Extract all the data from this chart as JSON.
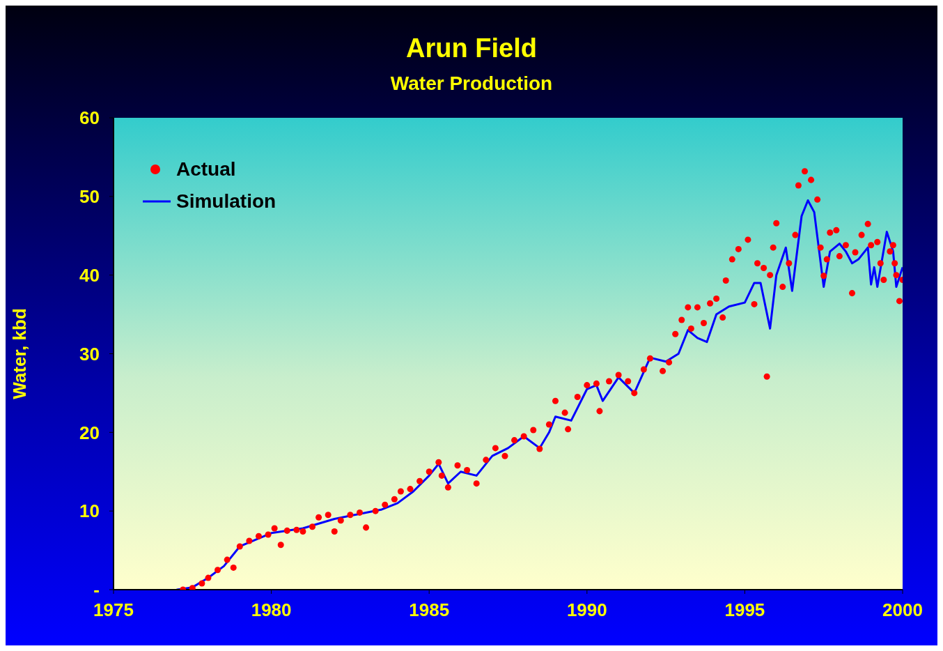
{
  "chart_data": {
    "type": "scatter",
    "title": "Arun Field",
    "subtitle": "Water Production",
    "ylabel": "Water, kbd",
    "xlim": [
      1975,
      2000
    ],
    "xticks": [
      1975,
      1980,
      1985,
      1990,
      1995,
      2000
    ],
    "ylim": [
      0,
      60
    ],
    "yticks": [
      {
        "value": 0,
        "label": "-"
      },
      10,
      20,
      30,
      40,
      50,
      60
    ],
    "legend": "top left",
    "grid": false,
    "series": [
      {
        "name": "Actual",
        "marker": "circle",
        "color": "#ff0000",
        "x": [
          1977.2,
          1977.5,
          1977.8,
          1978.0,
          1978.3,
          1978.6,
          1978.8,
          1979.0,
          1979.3,
          1979.6,
          1979.9,
          1980.1,
          1980.3,
          1980.5,
          1980.8,
          1981.0,
          1981.3,
          1981.5,
          1981.8,
          1982.0,
          1982.2,
          1982.5,
          1982.8,
          1983.0,
          1983.3,
          1983.6,
          1983.9,
          1984.1,
          1984.4,
          1984.7,
          1985.0,
          1985.3,
          1985.4,
          1985.6,
          1985.9,
          1986.2,
          1986.5,
          1986.8,
          1987.1,
          1987.4,
          1987.7,
          1988.0,
          1988.3,
          1988.5,
          1988.8,
          1989.0,
          1989.3,
          1989.4,
          1989.7,
          1990.0,
          1990.3,
          1990.4,
          1990.7,
          1991.0,
          1991.3,
          1991.5,
          1991.8,
          1992.0,
          1992.4,
          1992.6,
          1992.8,
          1993.0,
          1993.2,
          1993.3,
          1993.5,
          1993.7,
          1993.9,
          1994.1,
          1994.3,
          1994.4,
          1994.6,
          1994.8,
          1995.1,
          1995.3,
          1995.4,
          1995.6,
          1995.7,
          1995.8,
          1995.9,
          1996.0,
          1996.2,
          1996.4,
          1996.6,
          1996.7,
          1996.9,
          1997.1,
          1997.3,
          1997.4,
          1997.5,
          1997.6,
          1997.7,
          1997.9,
          1998.0,
          1998.2,
          1998.4,
          1998.5,
          1998.7,
          1998.9,
          1999.0,
          1999.2,
          1999.3,
          1999.4,
          1999.6,
          1999.7,
          1999.75,
          1999.8,
          1999.9,
          2000.0
        ],
        "values": [
          0,
          0.2,
          0.8,
          1.5,
          2.5,
          3.8,
          2.8,
          5.5,
          6.2,
          6.8,
          7.0,
          7.8,
          5.7,
          7.5,
          7.6,
          7.4,
          8.0,
          9.2,
          9.5,
          7.4,
          8.8,
          9.5,
          9.8,
          7.9,
          10.0,
          10.8,
          11.5,
          12.5,
          12.8,
          13.8,
          15.0,
          16.2,
          14.5,
          13.0,
          15.8,
          15.2,
          13.5,
          16.5,
          18.0,
          17.0,
          19.0,
          19.5,
          20.3,
          17.9,
          21.0,
          24.0,
          22.5,
          20.4,
          24.5,
          26.0,
          26.2,
          22.7,
          26.5,
          27.3,
          26.5,
          25.0,
          28.0,
          29.4,
          27.8,
          28.9,
          32.5,
          34.3,
          35.9,
          33.2,
          35.9,
          33.9,
          36.4,
          37.0,
          34.6,
          39.3,
          42.0,
          43.3,
          44.5,
          36.3,
          41.5,
          40.9,
          27.1,
          40.0,
          43.5,
          46.6,
          38.5,
          41.5,
          45.1,
          51.4,
          53.2,
          52.1,
          49.6,
          43.5,
          39.9,
          42.0,
          45.4,
          45.7,
          42.4,
          43.8,
          37.7,
          42.9,
          45.1,
          46.5,
          43.8,
          44.2,
          41.5,
          39.4,
          43.0,
          43.8,
          41.5,
          40.0,
          36.7,
          39.4
        ]
      },
      {
        "name": "Simulation",
        "type": "line",
        "line_style": "solid",
        "color": "#0000ff",
        "x": [
          1977.0,
          1977.5,
          1978.0,
          1978.5,
          1979.0,
          1980.0,
          1981.0,
          1982.0,
          1983.0,
          1983.5,
          1984.0,
          1984.5,
          1985.0,
          1985.3,
          1985.6,
          1986.0,
          1986.5,
          1987.0,
          1987.5,
          1988.0,
          1988.5,
          1988.8,
          1989.0,
          1989.5,
          1990.0,
          1990.3,
          1990.5,
          1991.0,
          1991.5,
          1992.0,
          1992.5,
          1992.9,
          1993.2,
          1993.5,
          1993.8,
          1994.1,
          1994.5,
          1995.0,
          1995.3,
          1995.5,
          1995.8,
          1996.0,
          1996.3,
          1996.5,
          1996.8,
          1997.0,
          1997.2,
          1997.5,
          1997.7,
          1998.0,
          1998.2,
          1998.4,
          1998.6,
          1998.9,
          1999.0,
          1999.1,
          1999.2,
          1999.5,
          1999.7,
          1999.8,
          2000.0
        ],
        "values": [
          0,
          0.3,
          1.5,
          3,
          5.5,
          7.2,
          7.8,
          9,
          9.8,
          10.2,
          11,
          12.5,
          14.5,
          16,
          13.5,
          15,
          14.5,
          17,
          18,
          19.5,
          18,
          20,
          22,
          21.5,
          25.5,
          26,
          24,
          27,
          25,
          29.5,
          29,
          30,
          33,
          32,
          31.5,
          35,
          36,
          36.5,
          39,
          39,
          33.2,
          40,
          43.5,
          38,
          47.5,
          49.5,
          48,
          38.5,
          43,
          44,
          43,
          41.5,
          42,
          43.5,
          38.8,
          41,
          38.5,
          45.5,
          43,
          38.5,
          41
        ]
      }
    ]
  }
}
